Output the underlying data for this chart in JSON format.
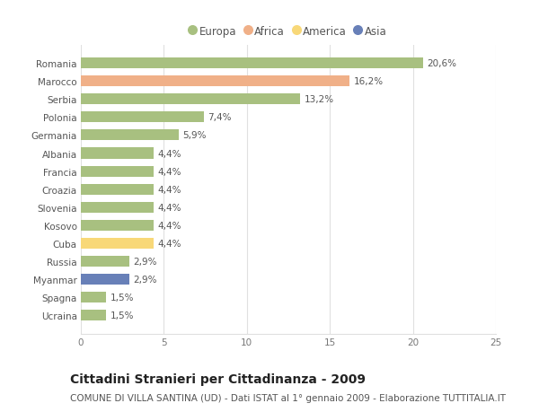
{
  "categories": [
    "Romania",
    "Marocco",
    "Serbia",
    "Polonia",
    "Germania",
    "Albania",
    "Francia",
    "Croazia",
    "Slovenia",
    "Kosovo",
    "Cuba",
    "Russia",
    "Myanmar",
    "Spagna",
    "Ucraina"
  ],
  "values": [
    20.6,
    16.2,
    13.2,
    7.4,
    5.9,
    4.4,
    4.4,
    4.4,
    4.4,
    4.4,
    4.4,
    2.9,
    2.9,
    1.5,
    1.5
  ],
  "labels": [
    "20,6%",
    "16,2%",
    "13,2%",
    "7,4%",
    "5,9%",
    "4,4%",
    "4,4%",
    "4,4%",
    "4,4%",
    "4,4%",
    "4,4%",
    "2,9%",
    "2,9%",
    "1,5%",
    "1,5%"
  ],
  "bar_colors": [
    "#a8c080",
    "#f0b088",
    "#a8c080",
    "#a8c080",
    "#a8c080",
    "#a8c080",
    "#a8c080",
    "#a8c080",
    "#a8c080",
    "#a8c080",
    "#f8d878",
    "#a8c080",
    "#6880b8",
    "#a8c080",
    "#a8c080"
  ],
  "legend_labels": [
    "Europa",
    "Africa",
    "America",
    "Asia"
  ],
  "legend_colors": [
    "#a8c080",
    "#f0b088",
    "#f8d878",
    "#6880b8"
  ],
  "title": "Cittadini Stranieri per Cittadinanza - 2009",
  "subtitle": "COMUNE DI VILLA SANTINA (UD) - Dati ISTAT al 1° gennaio 2009 - Elaborazione TUTTITALIA.IT",
  "xlim": [
    0,
    25
  ],
  "xticks": [
    0,
    5,
    10,
    15,
    20,
    25
  ],
  "background_color": "#ffffff",
  "plot_background": "#ffffff",
  "grid_color": "#e0e0e0",
  "title_fontsize": 10,
  "subtitle_fontsize": 7.5,
  "label_fontsize": 7.5,
  "tick_fontsize": 7.5,
  "legend_fontsize": 8.5
}
